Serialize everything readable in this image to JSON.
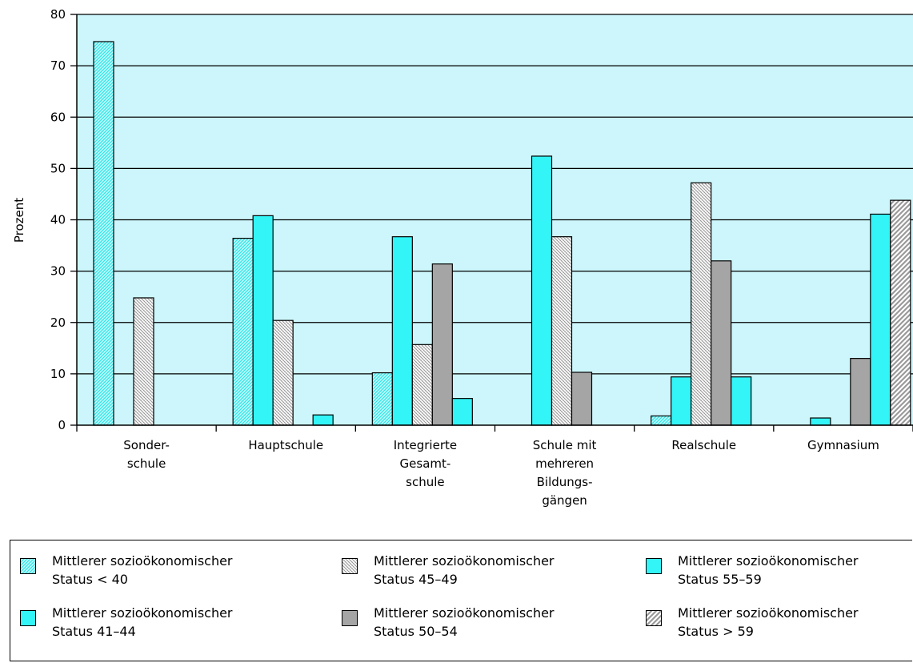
{
  "chart_data": {
    "type": "bar",
    "title": "",
    "xlabel": "",
    "ylabel": "Prozent",
    "ylim": [
      0,
      80
    ],
    "yticks": [
      0,
      10,
      20,
      30,
      40,
      50,
      60,
      70,
      80
    ],
    "grid": true,
    "legend_position": "bottom",
    "colors": {
      "plot_background": "#ccf6fb",
      "cyan": "#33f4f7",
      "gray": "#a5a5a5",
      "white": "#ffffff",
      "hatch_cyan": "#7ae8ea",
      "hatch_gray": "#9a9a9a"
    },
    "categories": [
      [
        "Sonder-",
        "schule"
      ],
      [
        "Hauptschule"
      ],
      [
        "Integrierte",
        "Gesamt-",
        "schule"
      ],
      [
        "Schule mit",
        "mehreren",
        "Bildungs-",
        "gängen"
      ],
      [
        "Realschule"
      ],
      [
        "Gymnasium"
      ]
    ],
    "series": [
      {
        "name": "Mittlerer sozioökonomischer Status < 40",
        "legend_lines": [
          "Mittlerer sozioökonomischer",
          "Status < 40"
        ],
        "pattern": "dots-cyan",
        "values": [
          74.7,
          36.4,
          10.2,
          0,
          1.8,
          0
        ]
      },
      {
        "name": "Mittlerer sozioökonomischer Status 41–44",
        "legend_lines": [
          "Mittlerer sozioökonomischer",
          "Status 41–44"
        ],
        "pattern": "solid-cyan",
        "values": [
          0,
          40.8,
          36.7,
          52.4,
          9.4,
          1.4
        ]
      },
      {
        "name": "Mittlerer sozioökonomischer Status 45–49",
        "legend_lines": [
          "Mittlerer sozioökonomischer",
          "Status 45–49"
        ],
        "pattern": "crosshatch-gray",
        "values": [
          24.8,
          20.4,
          15.7,
          36.7,
          47.2,
          0
        ]
      },
      {
        "name": "Mittlerer sozioökonomischer Status 50–54",
        "legend_lines": [
          "Mittlerer sozioökonomischer",
          "Status 50–54"
        ],
        "pattern": "solid-gray",
        "values": [
          0,
          0,
          31.4,
          10.3,
          32.0,
          13.0
        ]
      },
      {
        "name": "Mittlerer sozioökonomischer Status 55–59",
        "legend_lines": [
          "Mittlerer sozioökonomischer",
          "Status 55–59"
        ],
        "pattern": "solid-cyan",
        "values": [
          0,
          2.0,
          5.2,
          0,
          9.4,
          41.1
        ]
      },
      {
        "name": "Mittlerer sozioökonomischer Status > 59",
        "legend_lines": [
          "Mittlerer sozioökonomischer",
          "Status > 59"
        ],
        "pattern": "diag-gray",
        "values": [
          0,
          0,
          0,
          0,
          0,
          43.8
        ]
      }
    ],
    "legend_order": [
      0,
      2,
      4,
      1,
      3,
      5
    ]
  }
}
